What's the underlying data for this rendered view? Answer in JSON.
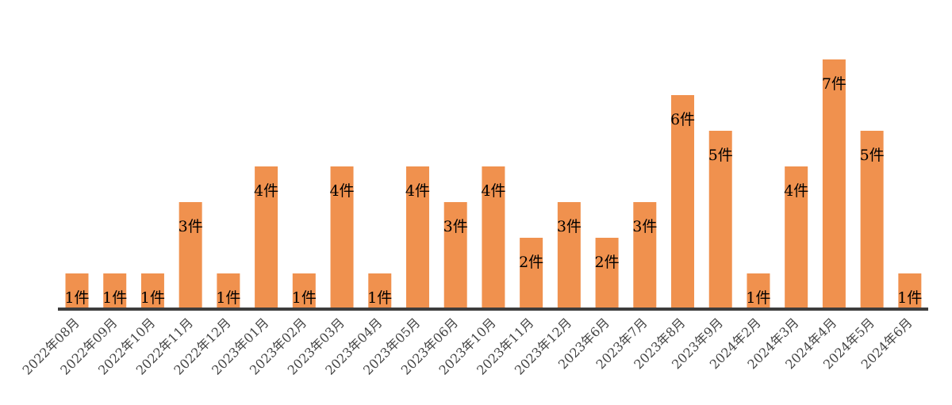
{
  "chart_data": {
    "type": "bar",
    "title": "",
    "xlabel": "",
    "ylabel": "",
    "ylim": [
      0,
      7
    ],
    "grid": false,
    "legend": "none",
    "value_suffix": "件",
    "bar_color": "#F0914E",
    "axis_color": "#3d3d3d",
    "categories": [
      "2022年08月",
      "2022年09月",
      "2022年10月",
      "2022年11月",
      "2022年12月",
      "2023年01月",
      "2023年02月",
      "2023年03月",
      "2023年04月",
      "2023年05月",
      "2023年06月",
      "2023年10月",
      "2023年11月",
      "2023年12月",
      "2023年6月",
      "2023年7月",
      "2023年8月",
      "2023年9月",
      "2024年2月",
      "2024年3月",
      "2024年4月",
      "2024年5月",
      "2024年6月"
    ],
    "values": [
      1,
      1,
      1,
      3,
      1,
      4,
      1,
      4,
      1,
      4,
      3,
      4,
      2,
      3,
      2,
      3,
      6,
      5,
      1,
      4,
      7,
      5,
      1
    ]
  }
}
